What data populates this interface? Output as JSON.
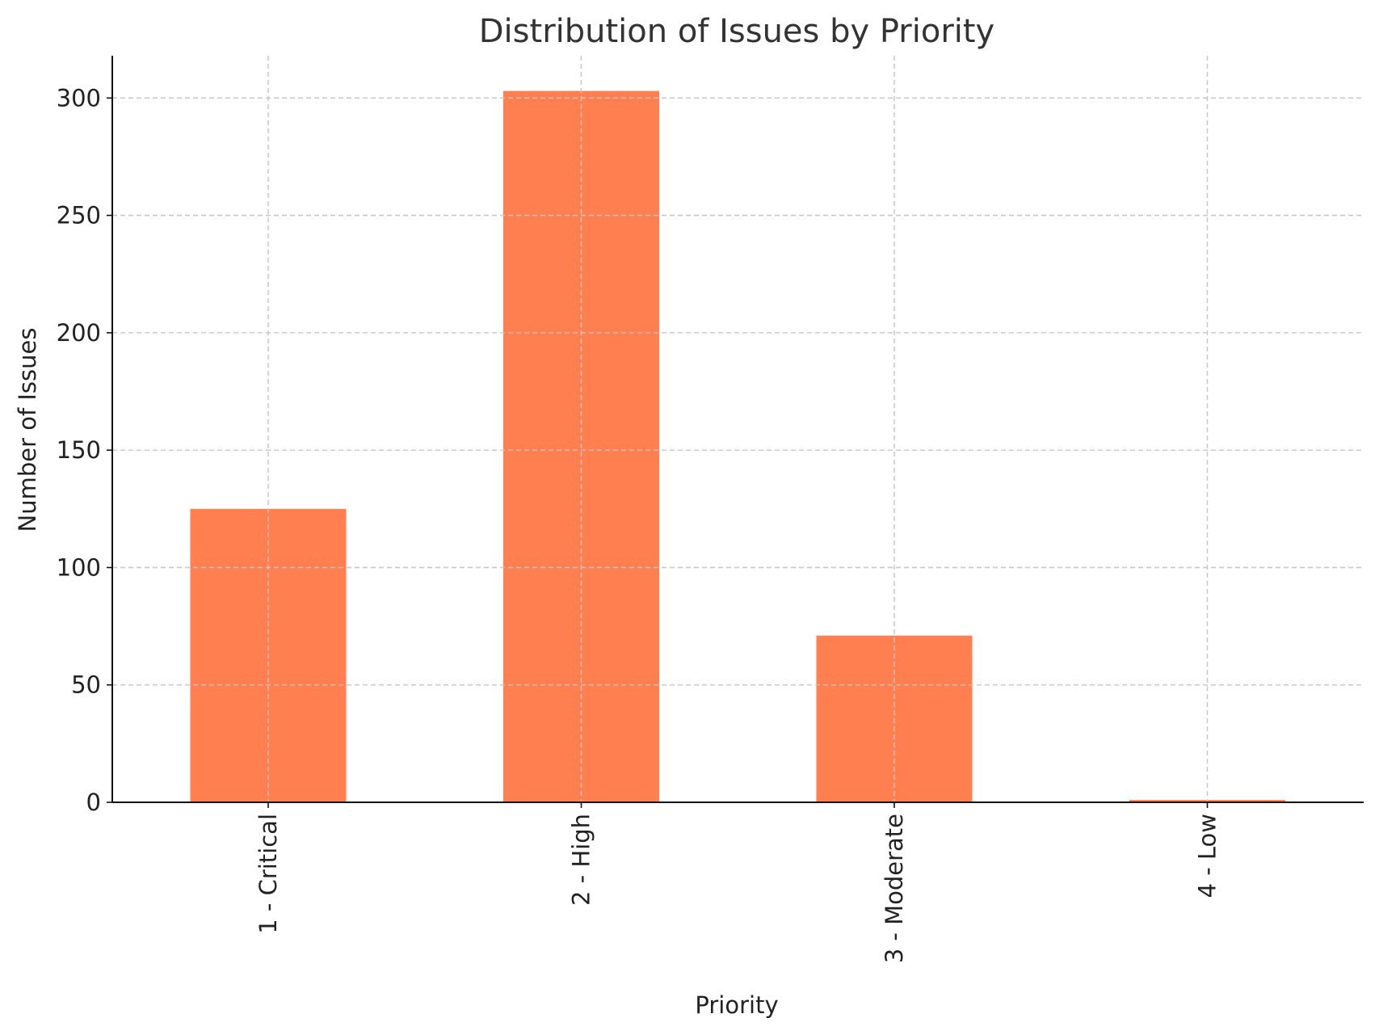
{
  "chart_data": {
    "type": "bar",
    "title": "Distribution of Issues by Priority",
    "xlabel": "Priority",
    "ylabel": "Number of Issues",
    "categories": [
      "1 - Critical",
      "2 - High",
      "3 - Moderate",
      "4 - Low"
    ],
    "values": [
      125,
      303,
      71,
      1
    ],
    "ylim": [
      0,
      318
    ],
    "yticks": [
      0,
      50,
      100,
      150,
      200,
      250,
      300
    ],
    "ytick_labels": [
      "0",
      "50",
      "100",
      "150",
      "200",
      "250",
      "300"
    ],
    "grid": true,
    "legend": "none",
    "bar_color": "#ff7f50"
  }
}
